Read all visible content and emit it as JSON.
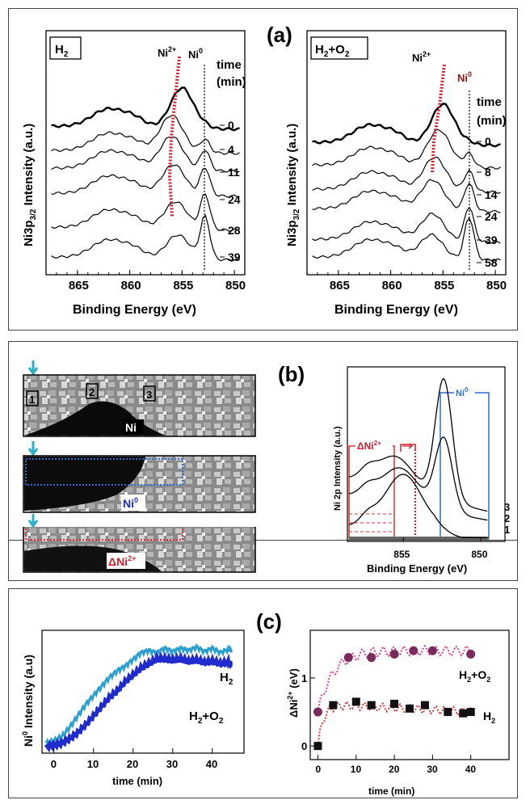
{
  "panel_a": {
    "label": "(a)",
    "left": {
      "gas": "H",
      "gas_sub": "2",
      "gas_mid": "",
      "gas_tail": "",
      "ni2_label": "Ni",
      "ni2_sup": "2+",
      "ni0_label": "Ni",
      "ni0_sup": "0",
      "time_header_1": "time",
      "time_header_2": "(min)"
    },
    "right": {
      "gas": "H",
      "gas_sub": "2",
      "gas_mid": "+O",
      "gas_tail": "2",
      "ni2_label": "Ni",
      "ni2_sup": "2+",
      "ni0_label": "Ni",
      "ni0_sup": "0",
      "time_header_1": "time",
      "time_header_2": "(min)"
    },
    "ylabel_pre": "Ni3p",
    "ylabel_sub": "3/2",
    "ylabel_post": " Intensity (a.u.)",
    "xlabel": "Binding Energy (eV)"
  },
  "panel_b": {
    "label": "(b)",
    "ylabel": "Ni 2p Intensity (a.u.)",
    "xlabel": "Binding Energy (eV)",
    "img1_label": "Ni",
    "img1_regions": [
      "1",
      "2",
      "3"
    ],
    "img2_label": "Ni",
    "img2_sup": "0",
    "img3_label": "ΔNi",
    "img3_sup": "2+",
    "box_ni0": "Ni",
    "box_ni0_sup": "0",
    "box_dni": "ΔNi",
    "box_dni_sup": "2+"
  },
  "panel_c": {
    "label": "(c)",
    "left_ylabel_pre": "Ni",
    "left_ylabel_sup": "0",
    "left_ylabel_post": " Intensity (a.u)",
    "right_ylabel_pre": "ΔNi",
    "right_ylabel_sup": "2+",
    "right_ylabel_post": " (eV)",
    "xlabel": "time (min)",
    "legend_left_h2": "H",
    "legend_left_h2o2": "H",
    "legend_left_h2o2_mid": "+O",
    "legend_right_h2o2": "H",
    "legend_right_h2o2_mid": "+O",
    "legend_right_h2": "H",
    "sub2": "2"
  },
  "colors": {
    "red_dot": "#d02030",
    "light_blue": "#2a9fd0",
    "dark_blue": "#1f2bcc",
    "pink": "#d6408a",
    "purple_marker": "#7a2a5c",
    "cyan_arrow": "#2ab0c8",
    "box_blue": "#2a6fd8",
    "box_red": "#e03030"
  },
  "chart_data": [
    {
      "type": "line",
      "title": "H2",
      "xlabel": "Binding Energy (eV)",
      "ylabel": "Ni3p3/2 Intensity (a.u.)",
      "xlim": [
        868,
        849
      ],
      "xticks": [
        865,
        860,
        855,
        850
      ],
      "series_labels": [
        "0",
        "4",
        "11",
        "24",
        "28",
        "39"
      ],
      "ni2_peak_ev": [
        855.0,
        856.0,
        856.0,
        855.8,
        855.6,
        855.4
      ],
      "ni0_peak_ev": 852.8
    },
    {
      "type": "line",
      "title": "H2+O2",
      "xlabel": "Binding Energy (eV)",
      "ylabel": "Ni3p3/2 Intensity (a.u.)",
      "xlim": [
        868,
        849
      ],
      "xticks": [
        865,
        860,
        855,
        850
      ],
      "series_labels": [
        "0",
        "8",
        "14",
        "24",
        "39",
        "58"
      ],
      "ni2_peak_ev": [
        855.0,
        855.4,
        855.8,
        856.0,
        856.0,
        856.1
      ],
      "ni0_peak_ev": 852.5
    },
    {
      "type": "line",
      "xlabel": "Binding Energy (eV)",
      "ylabel": "Ni 2p Intensity (a.u.)",
      "xlim": [
        858.5,
        849.5
      ],
      "xticks": [
        855,
        850
      ],
      "series_labels": [
        "3",
        "2",
        "1"
      ]
    },
    {
      "type": "line",
      "xlabel": "time (min)",
      "ylabel": "Ni0 Intensity (a.u)",
      "xlim": [
        -3,
        48
      ],
      "xticks": [
        0,
        10,
        20,
        30,
        40
      ],
      "series": [
        {
          "name": "H2",
          "x": [
            -2,
            0,
            2,
            4,
            6,
            8,
            10,
            12,
            14,
            16,
            18,
            20,
            22,
            24,
            26,
            28,
            30,
            32,
            34,
            36,
            38,
            40,
            42,
            44,
            45
          ],
          "values": [
            0.06,
            0.08,
            0.12,
            0.2,
            0.3,
            0.4,
            0.48,
            0.56,
            0.64,
            0.7,
            0.74,
            0.8,
            0.86,
            0.88,
            0.86,
            0.9,
            0.87,
            0.9,
            0.88,
            0.91,
            0.87,
            0.9,
            0.86,
            0.89,
            0.88
          ]
        },
        {
          "name": "H2+O2",
          "x": [
            -2,
            0,
            2,
            4,
            6,
            8,
            10,
            12,
            14,
            16,
            18,
            20,
            22,
            24,
            26,
            28,
            30,
            32,
            34,
            36,
            38,
            40,
            42,
            44,
            45
          ],
          "values": [
            0.03,
            0.04,
            0.06,
            0.1,
            0.15,
            0.22,
            0.3,
            0.38,
            0.46,
            0.52,
            0.6,
            0.66,
            0.72,
            0.76,
            0.8,
            0.8,
            0.79,
            0.8,
            0.78,
            0.79,
            0.77,
            0.78,
            0.76,
            0.77,
            0.76
          ]
        }
      ]
    },
    {
      "type": "scatter",
      "xlabel": "time (min)",
      "ylabel": "ΔNi2+ (eV)",
      "xlim": [
        -2,
        50
      ],
      "ylim": [
        -0.2,
        1.7
      ],
      "xticks": [
        0,
        10,
        20,
        30,
        40
      ],
      "yticks": [
        0,
        1
      ],
      "series": [
        {
          "name": "H2+O2",
          "x": [
            0,
            8,
            14,
            20,
            25,
            30,
            40
          ],
          "values": [
            0.5,
            1.3,
            1.3,
            1.35,
            1.4,
            1.4,
            1.35
          ]
        },
        {
          "name": "H2",
          "x": [
            0,
            4,
            10,
            14,
            20,
            24,
            28,
            34,
            38,
            40
          ],
          "values": [
            0.0,
            0.6,
            0.65,
            0.6,
            0.62,
            0.55,
            0.6,
            0.5,
            0.48,
            0.5
          ]
        }
      ]
    }
  ]
}
